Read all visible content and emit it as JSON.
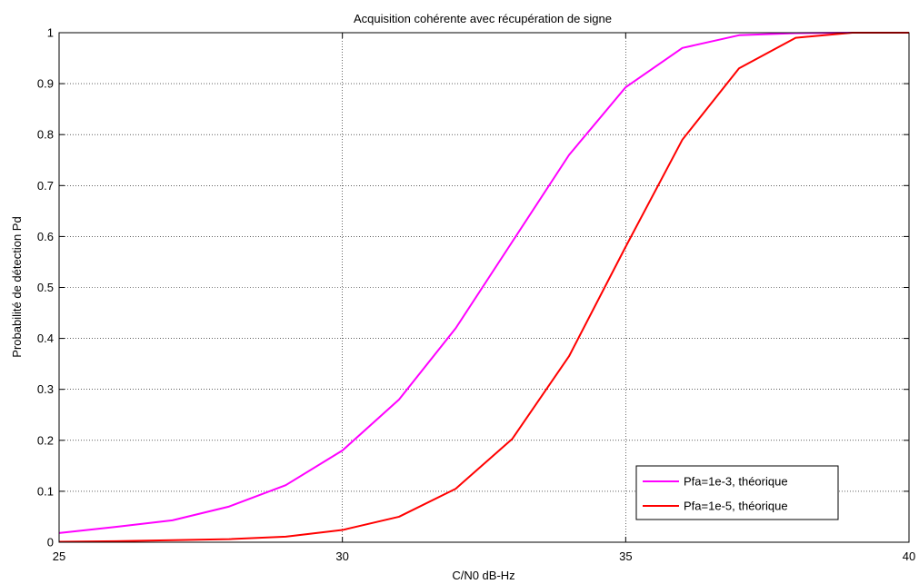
{
  "chart_data": {
    "type": "line",
    "title": "Acquisition cohérente avec récupération de signe",
    "xlabel": "C/N0 dB-Hz",
    "ylabel": "Probabilité de détection Pd",
    "xlim": [
      25,
      40
    ],
    "ylim": [
      0,
      1
    ],
    "xticks": [
      25,
      30,
      35,
      40
    ],
    "xtick_labels": [
      "25",
      "30",
      "35",
      "40"
    ],
    "yticks": [
      0,
      0.1,
      0.2,
      0.3,
      0.4,
      0.5,
      0.6,
      0.7,
      0.8,
      0.9,
      1
    ],
    "ytick_labels": [
      "0",
      "0.1",
      "0.2",
      "0.3",
      "0.4",
      "0.5",
      "0.6",
      "0.7",
      "0.8",
      "0.9",
      "1"
    ],
    "grid": true,
    "legend_position": "bottom-right",
    "series": [
      {
        "name": "Pfa=1e-3, théorique",
        "color": "#ff00ff",
        "x": [
          25,
          26,
          27,
          28,
          29,
          30,
          31,
          32,
          33,
          34,
          35,
          36,
          37,
          38,
          39,
          40
        ],
        "y": [
          0.018,
          0.03,
          0.043,
          0.07,
          0.112,
          0.18,
          0.28,
          0.42,
          0.59,
          0.76,
          0.893,
          0.97,
          0.995,
          0.999,
          1.0,
          1.0
        ]
      },
      {
        "name": "Pfa=1e-5, théorique",
        "color": "#ff0000",
        "x": [
          25,
          26,
          27,
          28,
          29,
          30,
          31,
          32,
          33,
          34,
          35,
          36,
          37,
          38,
          39,
          40
        ],
        "y": [
          0.001,
          0.002,
          0.004,
          0.006,
          0.011,
          0.024,
          0.05,
          0.105,
          0.203,
          0.365,
          0.58,
          0.79,
          0.93,
          0.99,
          1.0,
          1.0
        ]
      }
    ]
  }
}
